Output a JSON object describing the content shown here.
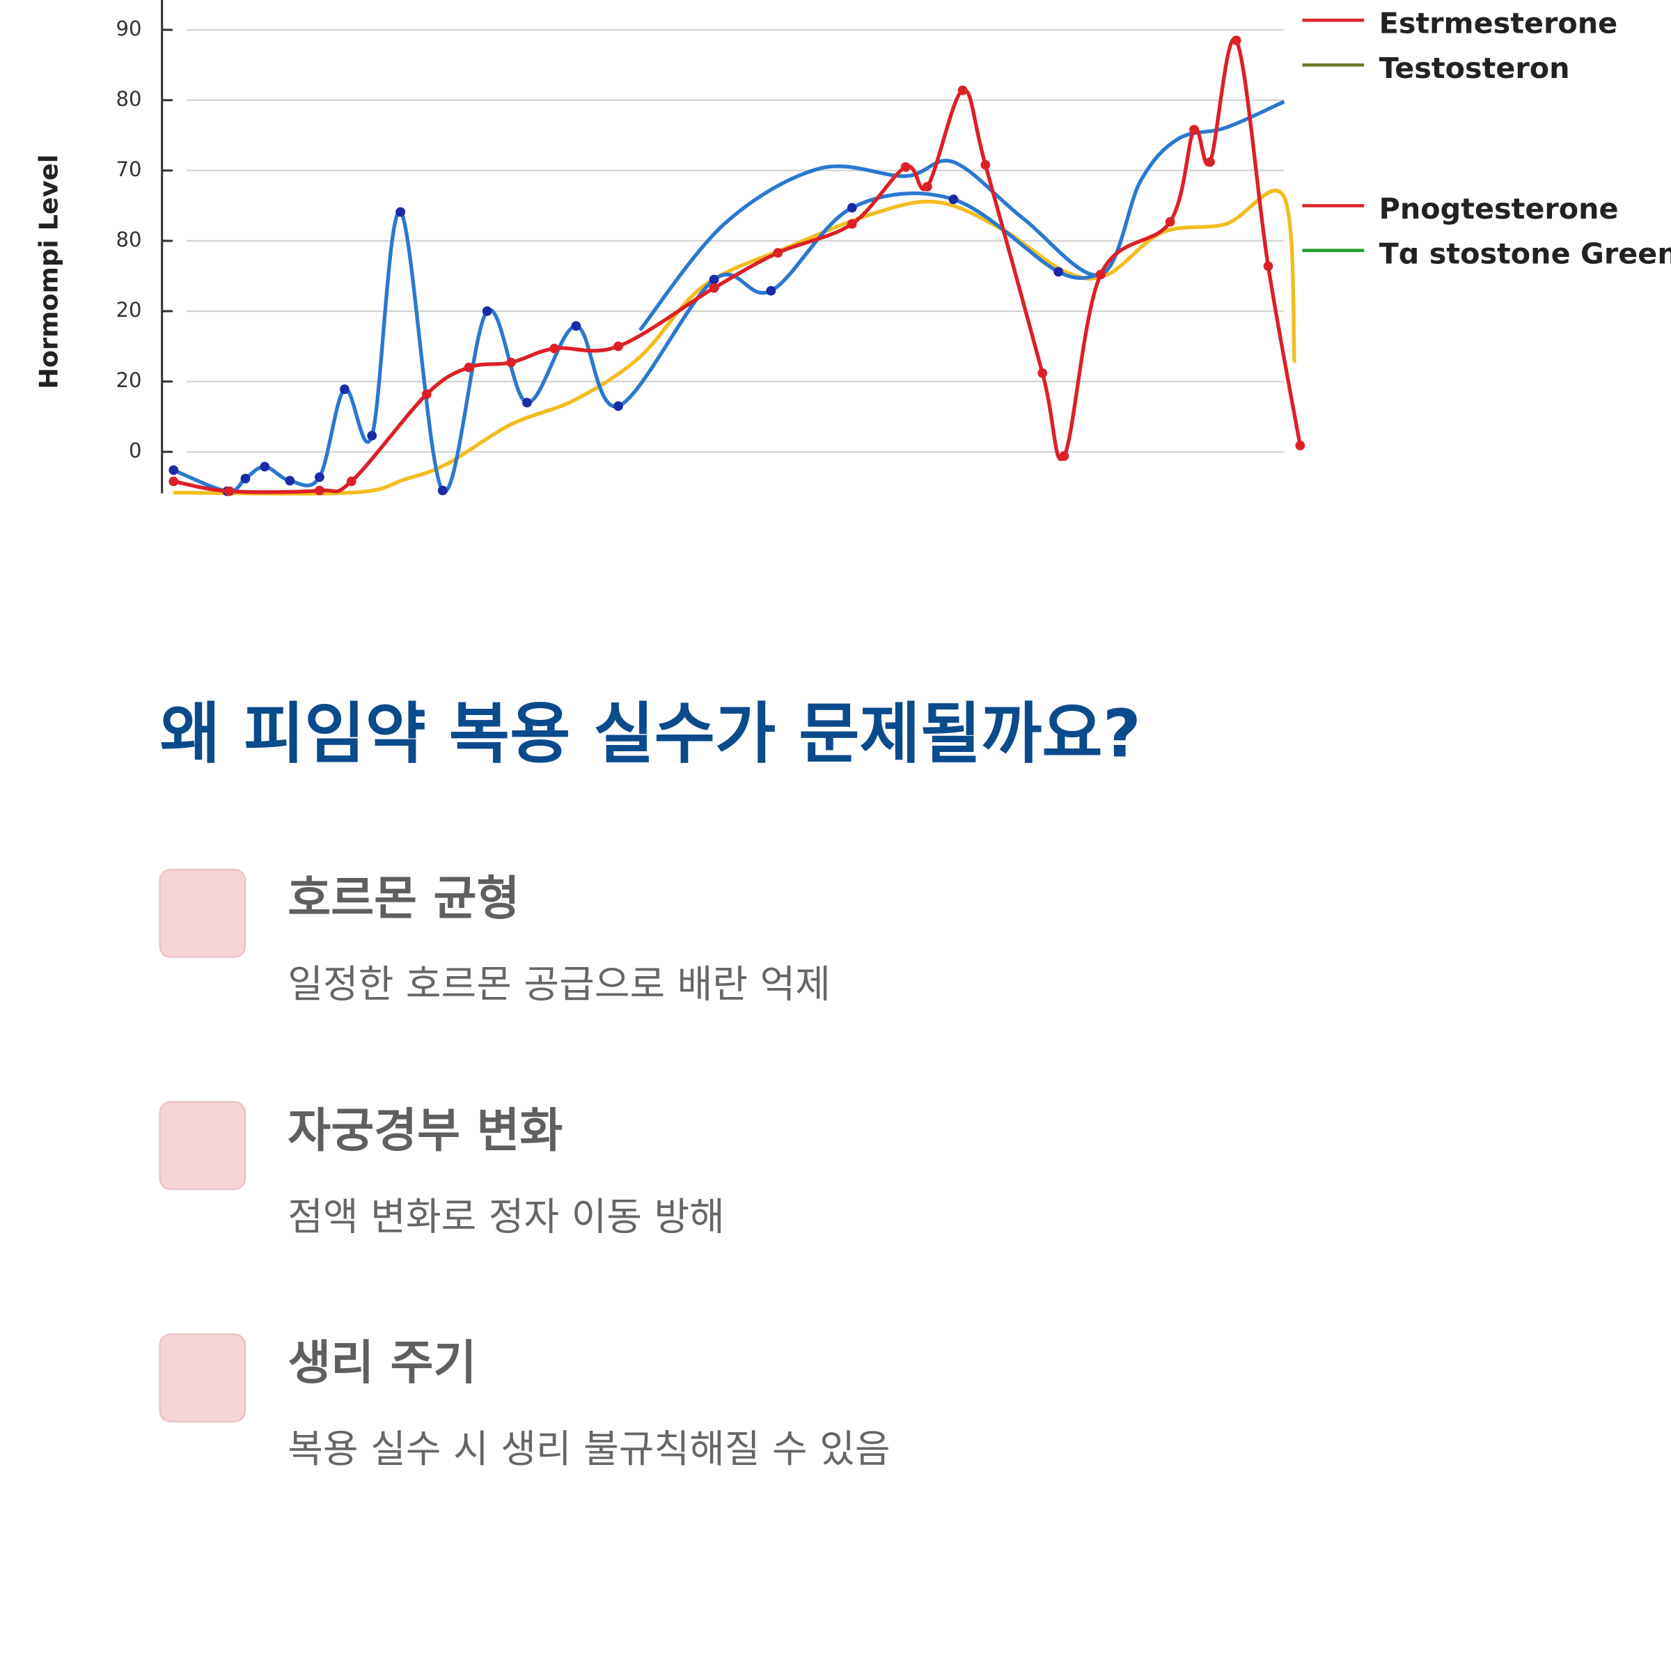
{
  "chart_data": {
    "type": "line",
    "y_label": "Hormompi Level",
    "xlim": [
      0,
      100
    ],
    "ylim": [
      24,
      95
    ],
    "yticks": [
      90,
      80,
      70,
      {
        "value": 60,
        "label": "80"
      },
      {
        "value": 50,
        "label": "20"
      },
      {
        "value": 40,
        "label": "20"
      },
      {
        "value": 30,
        "label": "0"
      }
    ],
    "grid": true,
    "legend_position": "right",
    "legend": [
      {
        "label": "Estrmesterone",
        "color": "#d9262b"
      },
      {
        "label": "Testosteron",
        "color": "#6b7a2c"
      },
      {
        "label": "Pnogtesterone",
        "color": "#d9262b"
      },
      {
        "label": "Tɑ stostone Green",
        "color": "#22a02a"
      }
    ],
    "series": [
      {
        "color": "#f2bd1d",
        "markers": false,
        "x": [
          1.2,
          16.8,
          21.5,
          25.2,
          30.8,
          36.4,
          42.1,
          47.7,
          55.1,
          62.6,
          68.2,
          73.8,
          79.4,
          83.1,
          87.9,
          93.5,
          98.6,
          99.5
        ],
        "values": [
          24.2,
          24.2,
          26.1,
          28.3,
          33.9,
          37.4,
          43.5,
          53.6,
          59.1,
          63.9,
          65.5,
          61.7,
          55.6,
          55.2,
          61.2,
          62.4,
          66.2,
          42.7
        ]
      },
      {
        "color": "#2a78d0",
        "markers": false,
        "x": [
          42.1,
          49.5,
          57.9,
          65.4,
          69.6,
          75.7,
          82.5,
          86.0,
          89.3,
          93.5,
          98.6
        ],
        "values": [
          47.3,
          62.4,
          70.3,
          69.2,
          71.2,
          63.2,
          55.2,
          68.5,
          74.5,
          76.1,
          79.8
        ]
      },
      {
        "color": "#2a78d0",
        "markers": true,
        "marker_color": "#1a2aa8",
        "x": [
          1.2,
          5.9,
          7.5,
          9.2,
          11.4,
          14.0,
          16.2,
          18.6,
          21.1,
          24.8,
          28.7,
          32.2,
          36.5,
          40.2,
          48.6,
          53.6,
          60.7,
          69.6,
          78.8,
          82.5
        ],
        "values": [
          27.4,
          24.4,
          26.2,
          27.9,
          25.9,
          26.4,
          38.9,
          32.3,
          64.1,
          24.5,
          50.0,
          37.0,
          47.9,
          36.5,
          54.5,
          52.9,
          64.7,
          65.9,
          55.6,
          55.2
        ]
      },
      {
        "color": "#dc2027",
        "markers": true,
        "marker_color": "#dc2027",
        "x": [
          1.2,
          6.1,
          14.0,
          16.8,
          23.4,
          27.1,
          30.8,
          34.6,
          40.2,
          48.6,
          54.2,
          60.7,
          65.4,
          67.3,
          70.4,
          72.4,
          77.4,
          79.3,
          82.5,
          88.6,
          90.7,
          92.1,
          94.4,
          97.2,
          100
        ],
        "values": [
          25.8,
          24.4,
          24.5,
          25.8,
          38.2,
          42.0,
          42.7,
          44.7,
          45.0,
          53.3,
          58.3,
          62.4,
          70.5,
          67.7,
          81.4,
          70.8,
          41.2,
          29.4,
          55.2,
          62.7,
          75.8,
          71.2,
          88.5,
          56.4,
          30.9
        ]
      }
    ]
  },
  "heading": "왜 피임약 복용 실수가 문제될까요?",
  "items": [
    {
      "title": "호르몬 균형",
      "description": "일정한 호르몬 공급으로 배란 억제"
    },
    {
      "title": "자궁경부 변화",
      "description": "점액 변화로 정자 이동 방해"
    },
    {
      "title": "생리 주기",
      "description": "복용 실수 시 생리 불규칙해질 수 있음"
    }
  ]
}
